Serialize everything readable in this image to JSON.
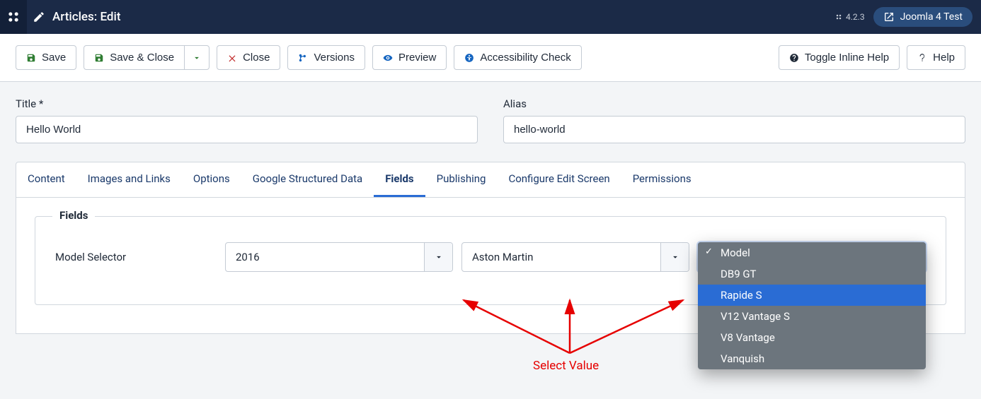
{
  "header": {
    "title": "Articles: Edit",
    "version": "4.2.3",
    "site_name": "Joomla 4 Test"
  },
  "toolbar": {
    "save": "Save",
    "save_close": "Save & Close",
    "close": "Close",
    "versions": "Versions",
    "preview": "Preview",
    "accessibility": "Accessibility Check",
    "toggle_help": "Toggle Inline Help",
    "help": "Help"
  },
  "fields": {
    "title_label": "Title *",
    "title_value": "Hello World",
    "alias_label": "Alias",
    "alias_value": "hello-world"
  },
  "tabs": [
    "Content",
    "Images and Links",
    "Options",
    "Google Structured Data",
    "Fields",
    "Publishing",
    "Configure Edit Screen",
    "Permissions"
  ],
  "active_tab_index": 4,
  "fieldset": {
    "legend": "Fields",
    "selector_label": "Model Selector",
    "selects": {
      "year": "2016",
      "make": "Aston Martin",
      "model_placeholder": "Model",
      "model_options": [
        "DB9 GT",
        "Rapide S",
        "V12 Vantage S",
        "V8 Vantage",
        "Vanquish"
      ],
      "model_highlight_index": 1
    }
  },
  "annotation": {
    "label": "Select Value",
    "color": "#e60000"
  }
}
